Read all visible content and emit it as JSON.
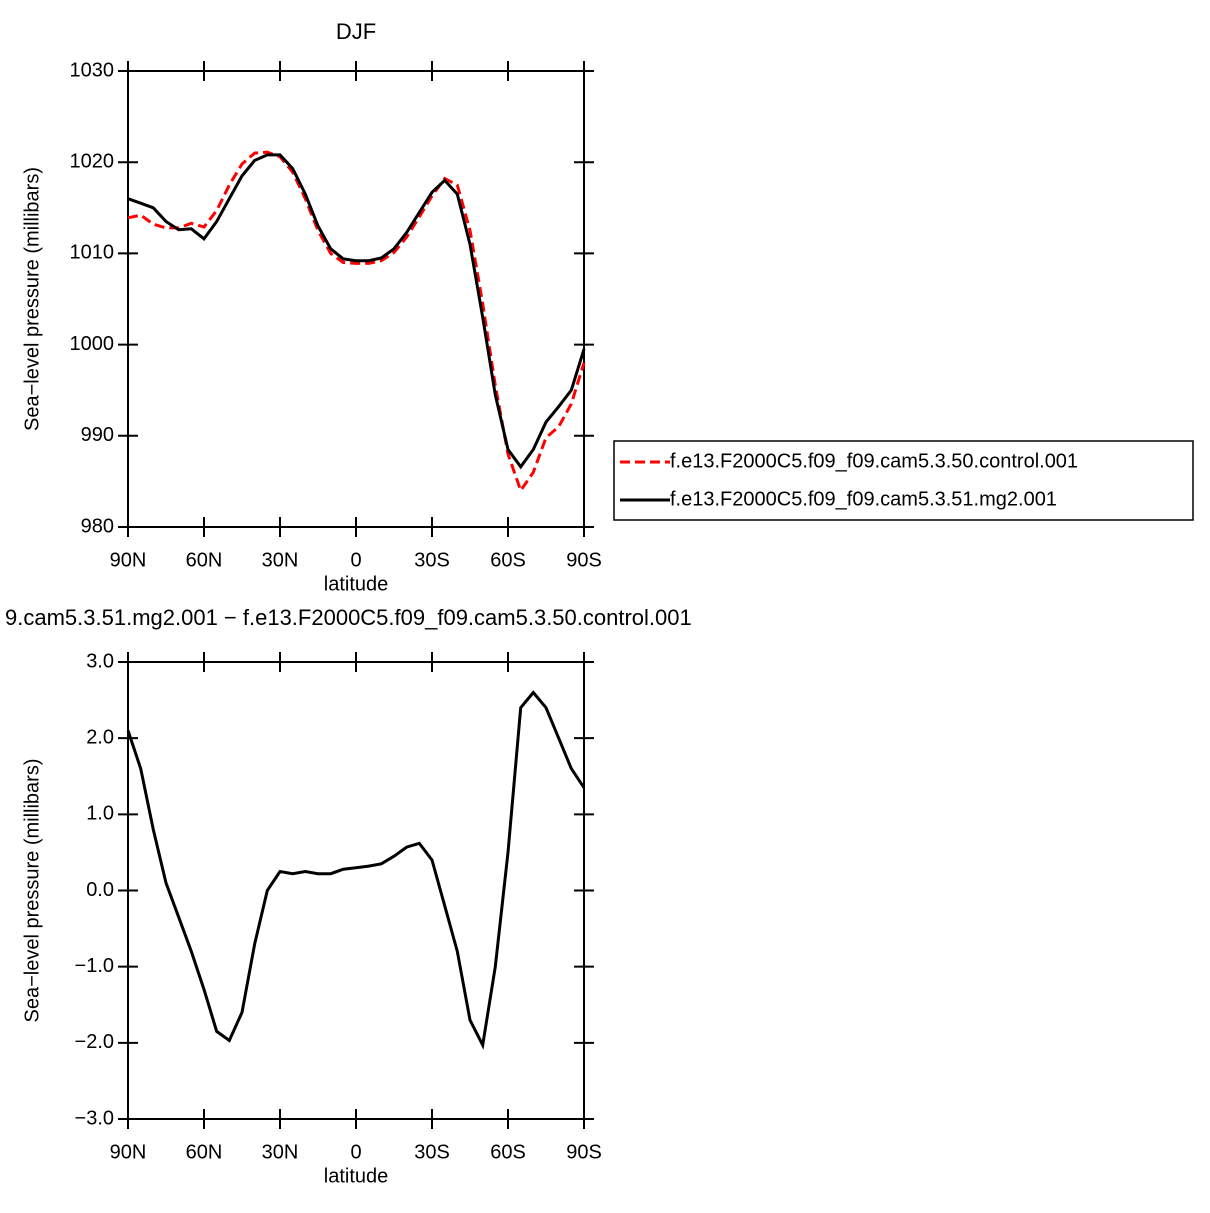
{
  "chart_data": [
    {
      "type": "line",
      "title": "DJF",
      "xlabel": "latitude",
      "ylabel": "Sea−level pressure (millibars)",
      "x": [
        90,
        85,
        80,
        75,
        70,
        65,
        60,
        55,
        50,
        45,
        40,
        35,
        30,
        25,
        20,
        15,
        10,
        5,
        0,
        -5,
        -10,
        -15,
        -20,
        -25,
        -30,
        -35,
        -40,
        -45,
        -50,
        -55,
        -60,
        -65,
        -70,
        -75,
        -80,
        -85,
        -90
      ],
      "xlim": [
        90,
        -90
      ],
      "xticks": [
        {
          "value": 90,
          "label": "90N"
        },
        {
          "value": 60,
          "label": "60N"
        },
        {
          "value": 30,
          "label": "30N"
        },
        0,
        {
          "value": -30,
          "label": "30S"
        },
        {
          "value": -60,
          "label": "60S"
        },
        {
          "value": -90,
          "label": "90S"
        }
      ],
      "ylim": [
        980,
        1030
      ],
      "yticks": [
        980,
        990,
        1000,
        1010,
        1020,
        1030
      ],
      "legend": "right",
      "series": [
        {
          "name": "f.e13.F2000C5.f09_f09.cam5.3.50.control.001",
          "color": "#ff0000",
          "dash": true,
          "values": [
            1013.9,
            1014.2,
            1013.2,
            1012.8,
            1012.8,
            1013.3,
            1012.9,
            1014.7,
            1017.5,
            1019.8,
            1021.0,
            1021.1,
            1020.6,
            1018.9,
            1016.0,
            1012.5,
            1010.0,
            1009.0,
            1008.9,
            1008.9,
            1009.2,
            1010.1,
            1011.8,
            1014.0,
            1016.3,
            1018.2,
            1017.5,
            1012.5,
            1004.5,
            995.5,
            988.0,
            984.0,
            986.0,
            989.8,
            991.0,
            993.5,
            998.0
          ]
        },
        {
          "name": "f.e13.F2000C5.f09_f09.cam5.3.51.mg2.001",
          "color": "#000000",
          "dash": false,
          "values": [
            1016.0,
            1015.5,
            1015.0,
            1013.5,
            1012.6,
            1012.7,
            1011.6,
            1013.5,
            1016.0,
            1018.5,
            1020.2,
            1020.8,
            1020.8,
            1019.3,
            1016.5,
            1013.0,
            1010.5,
            1009.4,
            1009.2,
            1009.2,
            1009.5,
            1010.5,
            1012.3,
            1014.5,
            1016.7,
            1018.0,
            1016.5,
            1011.0,
            1003.0,
            994.5,
            988.5,
            986.6,
            988.5,
            991.5,
            993.2,
            995.0,
            999.5
          ]
        }
      ]
    },
    {
      "type": "line",
      "title": "9.cam5.3.51.mg2.001 − f.e13.F2000C5.f09_f09.cam5.3.50.control.001",
      "xlabel": "latitude",
      "ylabel": "Sea−level pressure (millibars)",
      "x": [
        90,
        85,
        80,
        75,
        70,
        65,
        60,
        55,
        50,
        45,
        40,
        35,
        30,
        25,
        20,
        15,
        10,
        5,
        0,
        -5,
        -10,
        -15,
        -20,
        -25,
        -30,
        -35,
        -40,
        -45,
        -50,
        -55,
        -60,
        -65,
        -70,
        -75,
        -80,
        -85,
        -90
      ],
      "xlim": [
        90,
        -90
      ],
      "xticks": [
        {
          "value": 90,
          "label": "90N"
        },
        {
          "value": 60,
          "label": "60N"
        },
        {
          "value": 30,
          "label": "30N"
        },
        0,
        {
          "value": -30,
          "label": "30S"
        },
        {
          "value": -60,
          "label": "60S"
        },
        {
          "value": -90,
          "label": "90S"
        }
      ],
      "ylim": [
        -3,
        3
      ],
      "yticks": [
        {
          "value": -3,
          "label": "−3.0"
        },
        {
          "value": -2,
          "label": "−2.0"
        },
        {
          "value": -1,
          "label": "−1.0"
        },
        {
          "value": 0,
          "label": "0.0"
        },
        {
          "value": 1,
          "label": "1.0"
        },
        {
          "value": 2,
          "label": "2.0"
        },
        {
          "value": 3,
          "label": "3.0"
        }
      ],
      "series": [
        {
          "color": "#000000",
          "dash": false,
          "values": [
            2.1,
            1.6,
            0.8,
            0.1,
            -0.35,
            -0.8,
            -1.3,
            -1.85,
            -1.97,
            -1.6,
            -0.7,
            0.0,
            0.25,
            0.22,
            0.25,
            0.22,
            0.22,
            0.28,
            0.3,
            0.32,
            0.35,
            0.45,
            0.57,
            0.62,
            0.4,
            -0.2,
            -0.8,
            -1.7,
            -2.03,
            -1.0,
            0.5,
            2.4,
            2.6,
            2.4,
            2.0,
            1.6,
            1.35
          ]
        }
      ]
    }
  ]
}
